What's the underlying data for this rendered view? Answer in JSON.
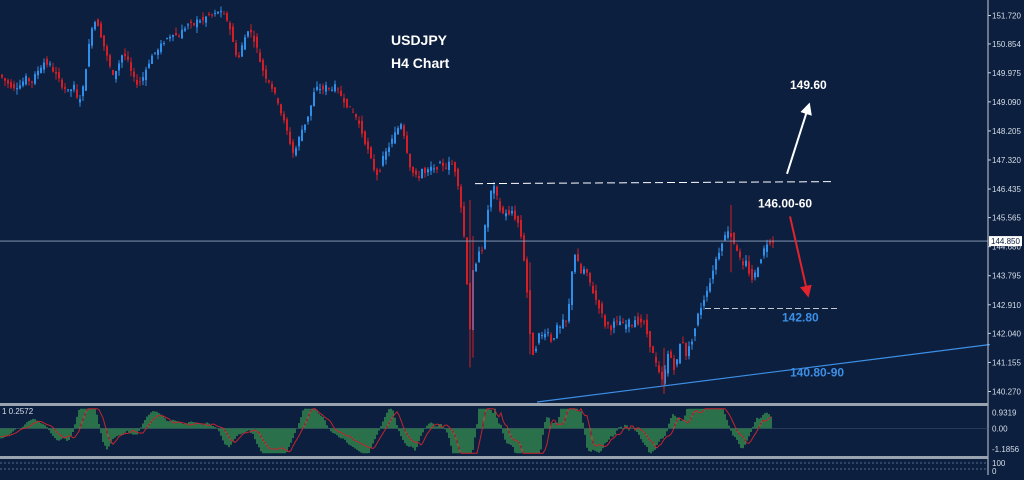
{
  "chart_data": {
    "type": "candlestick",
    "title": "USDJPY",
    "subtitle": "H4 Chart",
    "y_ticks": [
      151.72,
      150.854,
      149.975,
      149.09,
      148.205,
      147.32,
      146.435,
      145.565,
      144.68,
      143.795,
      142.91,
      142.04,
      141.155,
      140.27
    ],
    "y_tick_labels": [
      "151.720",
      "150.854",
      "149.975",
      "149.090",
      "148.205",
      "147.320",
      "146.435",
      "145.565",
      "144.680",
      "143.795",
      "142.910",
      "142.040",
      "141.155",
      "140.270"
    ],
    "ylim": [
      139.95,
      152.1
    ],
    "current_price": 144.85,
    "current_price_label": "144.850",
    "price_path": [
      [
        0,
        149.95
      ],
      [
        8,
        149.7
      ],
      [
        15,
        149.55
      ],
      [
        22,
        149.6
      ],
      [
        28,
        149.8
      ],
      [
        34,
        149.7
      ],
      [
        40,
        150.05
      ],
      [
        46,
        150.3
      ],
      [
        52,
        150.2
      ],
      [
        58,
        149.9
      ],
      [
        64,
        149.6
      ],
      [
        70,
        149.4
      ],
      [
        76,
        149.55
      ],
      [
        80,
        149.05
      ],
      [
        85,
        149.5
      ],
      [
        90,
        150.6
      ],
      [
        95,
        151.6
      ],
      [
        100,
        151.45
      ],
      [
        105,
        150.9
      ],
      [
        110,
        150.35
      ],
      [
        115,
        149.85
      ],
      [
        120,
        150.2
      ],
      [
        125,
        150.6
      ],
      [
        130,
        150.3
      ],
      [
        135,
        149.8
      ],
      [
        140,
        149.65
      ],
      [
        145,
        149.85
      ],
      [
        150,
        150.25
      ],
      [
        155,
        150.55
      ],
      [
        160,
        150.65
      ],
      [
        165,
        150.9
      ],
      [
        170,
        151.05
      ],
      [
        175,
        151.2
      ],
      [
        180,
        151.05
      ],
      [
        185,
        151.3
      ],
      [
        190,
        151.45
      ],
      [
        195,
        151.4
      ],
      [
        200,
        151.6
      ],
      [
        205,
        151.55
      ],
      [
        210,
        151.75
      ],
      [
        215,
        151.7
      ],
      [
        220,
        151.85
      ],
      [
        225,
        151.75
      ],
      [
        230,
        151.55
      ],
      [
        233,
        151.2
      ],
      [
        237,
        150.6
      ],
      [
        241,
        150.45
      ],
      [
        245,
        150.9
      ],
      [
        250,
        151.3
      ],
      [
        255,
        151.1
      ],
      [
        260,
        150.6
      ],
      [
        263,
        150.2
      ],
      [
        268,
        149.85
      ],
      [
        272,
        149.7
      ],
      [
        276,
        149.35
      ],
      [
        280,
        149.1
      ],
      [
        284,
        148.65
      ],
      [
        288,
        148.3
      ],
      [
        292,
        147.85
      ],
      [
        296,
        147.45
      ],
      [
        300,
        147.9
      ],
      [
        304,
        148.25
      ],
      [
        308,
        148.5
      ],
      [
        312,
        148.85
      ],
      [
        316,
        149.35
      ],
      [
        320,
        149.55
      ],
      [
        324,
        149.45
      ],
      [
        328,
        149.55
      ],
      [
        332,
        149.45
      ],
      [
        336,
        149.6
      ],
      [
        340,
        149.4
      ],
      [
        344,
        149.25
      ],
      [
        348,
        149.05
      ],
      [
        352,
        148.85
      ],
      [
        356,
        148.75
      ],
      [
        360,
        148.5
      ],
      [
        364,
        148.15
      ],
      [
        368,
        147.8
      ],
      [
        372,
        147.4
      ],
      [
        376,
        147.05
      ],
      [
        380,
        146.85
      ],
      [
        384,
        147.3
      ],
      [
        388,
        147.55
      ],
      [
        392,
        147.8
      ],
      [
        396,
        148.05
      ],
      [
        400,
        148.3
      ],
      [
        403,
        148.45
      ],
      [
        406,
        148.1
      ],
      [
        409,
        147.6
      ],
      [
        412,
        147.15
      ],
      [
        416,
        146.85
      ],
      [
        420,
        146.75
      ],
      [
        424,
        147.05
      ],
      [
        428,
        146.85
      ],
      [
        432,
        147.1
      ],
      [
        436,
        147.0
      ],
      [
        440,
        147.15
      ],
      [
        444,
        147.2
      ],
      [
        448,
        147.1
      ],
      [
        452,
        147.25
      ],
      [
        456,
        147.15
      ],
      [
        460,
        146.6
      ],
      [
        463,
        145.9
      ],
      [
        466,
        145.0
      ],
      [
        468,
        144.2
      ],
      [
        470,
        143.0
      ],
      [
        472,
        142.2
      ],
      [
        474,
        143.5
      ],
      [
        476,
        144.3
      ],
      [
        478,
        144.1
      ],
      [
        480,
        144.7
      ],
      [
        483,
        144.4
      ],
      [
        486,
        145.1
      ],
      [
        489,
        145.6
      ],
      [
        492,
        146.25
      ],
      [
        495,
        146.55
      ],
      [
        498,
        146.3
      ],
      [
        501,
        145.9
      ],
      [
        504,
        145.6
      ],
      [
        507,
        145.85
      ],
      [
        510,
        145.5
      ],
      [
        513,
        145.85
      ],
      [
        516,
        145.6
      ],
      [
        519,
        145.5
      ],
      [
        522,
        145.2
      ],
      [
        525,
        144.6
      ],
      [
        527,
        144.0
      ],
      [
        529,
        143.3
      ],
      [
        531,
        142.3
      ],
      [
        533,
        141.6
      ],
      [
        536,
        141.35
      ],
      [
        539,
        141.8
      ],
      [
        542,
        142.1
      ],
      [
        545,
        141.9
      ],
      [
        548,
        142.2
      ],
      [
        551,
        142.0
      ],
      [
        554,
        141.75
      ],
      [
        557,
        142.05
      ],
      [
        560,
        142.3
      ],
      [
        563,
        142.15
      ],
      [
        566,
        142.5
      ],
      [
        569,
        142.3
      ],
      [
        572,
        143.2
      ],
      [
        575,
        144.35
      ],
      [
        578,
        144.5
      ],
      [
        581,
        144.0
      ],
      [
        584,
        143.8
      ],
      [
        587,
        144.05
      ],
      [
        590,
        143.7
      ],
      [
        593,
        143.5
      ],
      [
        596,
        143.2
      ],
      [
        599,
        143.0
      ],
      [
        602,
        142.8
      ],
      [
        605,
        142.5
      ],
      [
        608,
        142.2
      ],
      [
        611,
        142.35
      ],
      [
        614,
        142.15
      ],
      [
        617,
        142.45
      ],
      [
        620,
        142.3
      ],
      [
        623,
        142.45
      ],
      [
        626,
        142.2
      ],
      [
        629,
        142.35
      ],
      [
        632,
        142.4
      ],
      [
        635,
        142.3
      ],
      [
        638,
        142.55
      ],
      [
        641,
        142.3
      ],
      [
        644,
        142.45
      ],
      [
        647,
        142.3
      ],
      [
        650,
        141.9
      ],
      [
        653,
        141.6
      ],
      [
        656,
        141.3
      ],
      [
        659,
        141.0
      ],
      [
        662,
        140.7
      ],
      [
        664,
        140.6
      ],
      [
        667,
        140.9
      ],
      [
        670,
        141.4
      ],
      [
        673,
        141.3
      ],
      [
        676,
        141.0
      ],
      [
        679,
        141.2
      ],
      [
        682,
        141.7
      ],
      [
        685,
        141.8
      ],
      [
        688,
        141.4
      ],
      [
        691,
        141.6
      ],
      [
        694,
        141.85
      ],
      [
        697,
        142.2
      ],
      [
        700,
        142.6
      ],
      [
        703,
        142.85
      ],
      [
        706,
        143.1
      ],
      [
        709,
        143.4
      ],
      [
        712,
        143.6
      ],
      [
        715,
        144.0
      ],
      [
        718,
        144.3
      ],
      [
        721,
        144.55
      ],
      [
        724,
        144.85
      ],
      [
        727,
        145.0
      ],
      [
        730,
        145.2
      ],
      [
        733,
        145.0
      ],
      [
        736,
        144.8
      ],
      [
        739,
        144.6
      ],
      [
        742,
        144.3
      ],
      [
        745,
        144.05
      ],
      [
        748,
        144.2
      ],
      [
        751,
        143.9
      ],
      [
        754,
        143.7
      ],
      [
        757,
        143.85
      ],
      [
        760,
        144.1
      ],
      [
        763,
        144.35
      ],
      [
        766,
        144.6
      ],
      [
        769,
        144.8
      ],
      [
        772,
        144.85
      ]
    ],
    "annotations": [
      {
        "id": "target-high",
        "text": "149.60",
        "y": 149.6
      },
      {
        "id": "resistance",
        "text": "146.00-60",
        "y": 146.0
      },
      {
        "id": "support",
        "text": "142.80",
        "y": 142.8
      },
      {
        "id": "trendline",
        "text": "140.80-90",
        "y": 140.85
      }
    ],
    "resistance_line": 146.6,
    "support_line": 142.8,
    "trendline": [
      [
        537,
        139.95
      ],
      [
        990,
        141.7
      ]
    ],
    "indicator": {
      "header": "1 0.2572",
      "y_ticks": [
        0.9319,
        0.0,
        -1.1856
      ],
      "y_tick_labels": [
        "0.9319",
        "0.00",
        "-1.1856"
      ],
      "ylim": [
        -1.55,
        1.25
      ]
    },
    "bottom_panel": {
      "y_tick_labels": [
        "100",
        "0"
      ]
    }
  },
  "colors": {
    "background": "#0c1f3f",
    "bull": "#2f8fe8",
    "bear": "#d01f26",
    "annotation_blue": "#3d8fe6",
    "hist_green": "#3fa653",
    "signal_red": "#c4262e"
  }
}
